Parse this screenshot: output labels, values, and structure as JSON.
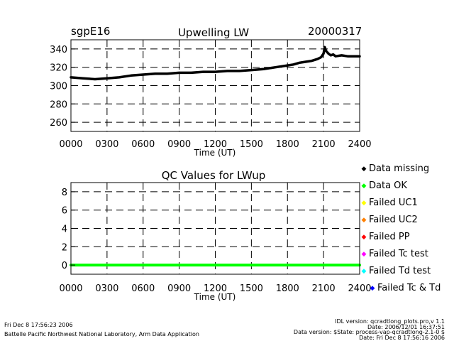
{
  "header": {
    "station": "sgpE16",
    "date": "20000317"
  },
  "footer": {
    "left_line1": "Fri Dec  8 17:56:23 2006",
    "left_line2": "Battelle Pacific Northwest National Laboratory, Arm Data Application",
    "right_line1": "IDL version: qcradtlong_plots.pro,v 1.1",
    "right_line2": "Date: 2006/12/01 16:37:51",
    "right_line3": "Data version: $State: process-vap-qcradtlong-2.1-0 $",
    "right_line4": "Date: Fri Dec  8 17:56:16 2006"
  },
  "legend": {
    "items": [
      {
        "label": "Data missing",
        "color": "#000000"
      },
      {
        "label": "Data OK",
        "color": "#00ff00"
      },
      {
        "label": "Failed UC1",
        "color": "#ffff00"
      },
      {
        "label": "Failed UC2",
        "color": "#ff8000"
      },
      {
        "label": "Failed PP",
        "color": "#ff0000"
      },
      {
        "label": "Failed Tc test",
        "color": "#ff00ff"
      },
      {
        "label": "Failed Td test",
        "color": "#00ffff"
      },
      {
        "label": "Failed Tc & Td",
        "color": "#0000ff"
      }
    ]
  },
  "chart_data": [
    {
      "type": "line",
      "title": "Upwelling LW",
      "xlabel": "Time (UT)",
      "ylabel": "",
      "xlim": [
        0,
        2400
      ],
      "ylim": [
        250,
        350
      ],
      "x_ticks": [
        "0000",
        "0300",
        "0600",
        "0900",
        "1200",
        "1500",
        "1800",
        "2100",
        "2400"
      ],
      "y_ticks": [
        260,
        280,
        300,
        320,
        340
      ],
      "grid": "dashed",
      "color": "#000000",
      "series": [
        {
          "x": [
            0,
            100,
            200,
            300,
            400,
            500,
            600,
            700,
            800,
            900,
            1000,
            1100,
            1200,
            1300,
            1400,
            1500,
            1600,
            1700,
            1800,
            1850,
            1900,
            1950,
            2000,
            2050,
            2080,
            2100,
            2110,
            2120,
            2140,
            2160,
            2180,
            2200,
            2250,
            2300,
            2350,
            2400
          ],
          "y": [
            309,
            308,
            307,
            308,
            309,
            311,
            312,
            313,
            313,
            314,
            314,
            315,
            315,
            316,
            316,
            317,
            318,
            320,
            322,
            323,
            325,
            326,
            327,
            329,
            331,
            335,
            342,
            338,
            335,
            333,
            334,
            332,
            333,
            332,
            332,
            332
          ]
        }
      ]
    },
    {
      "type": "line",
      "title": "QC Values for LWup",
      "xlabel": "Time (UT)",
      "ylabel": "",
      "xlim": [
        0,
        2400
      ],
      "ylim": [
        -1,
        9
      ],
      "x_ticks": [
        "0000",
        "0300",
        "0600",
        "0900",
        "1200",
        "1500",
        "1800",
        "2100",
        "2400"
      ],
      "y_ticks": [
        0,
        2,
        4,
        6,
        8
      ],
      "grid": "dashed",
      "color": "#00ff00",
      "series": [
        {
          "x": [
            0,
            2400
          ],
          "y": [
            0,
            0
          ]
        }
      ]
    }
  ]
}
